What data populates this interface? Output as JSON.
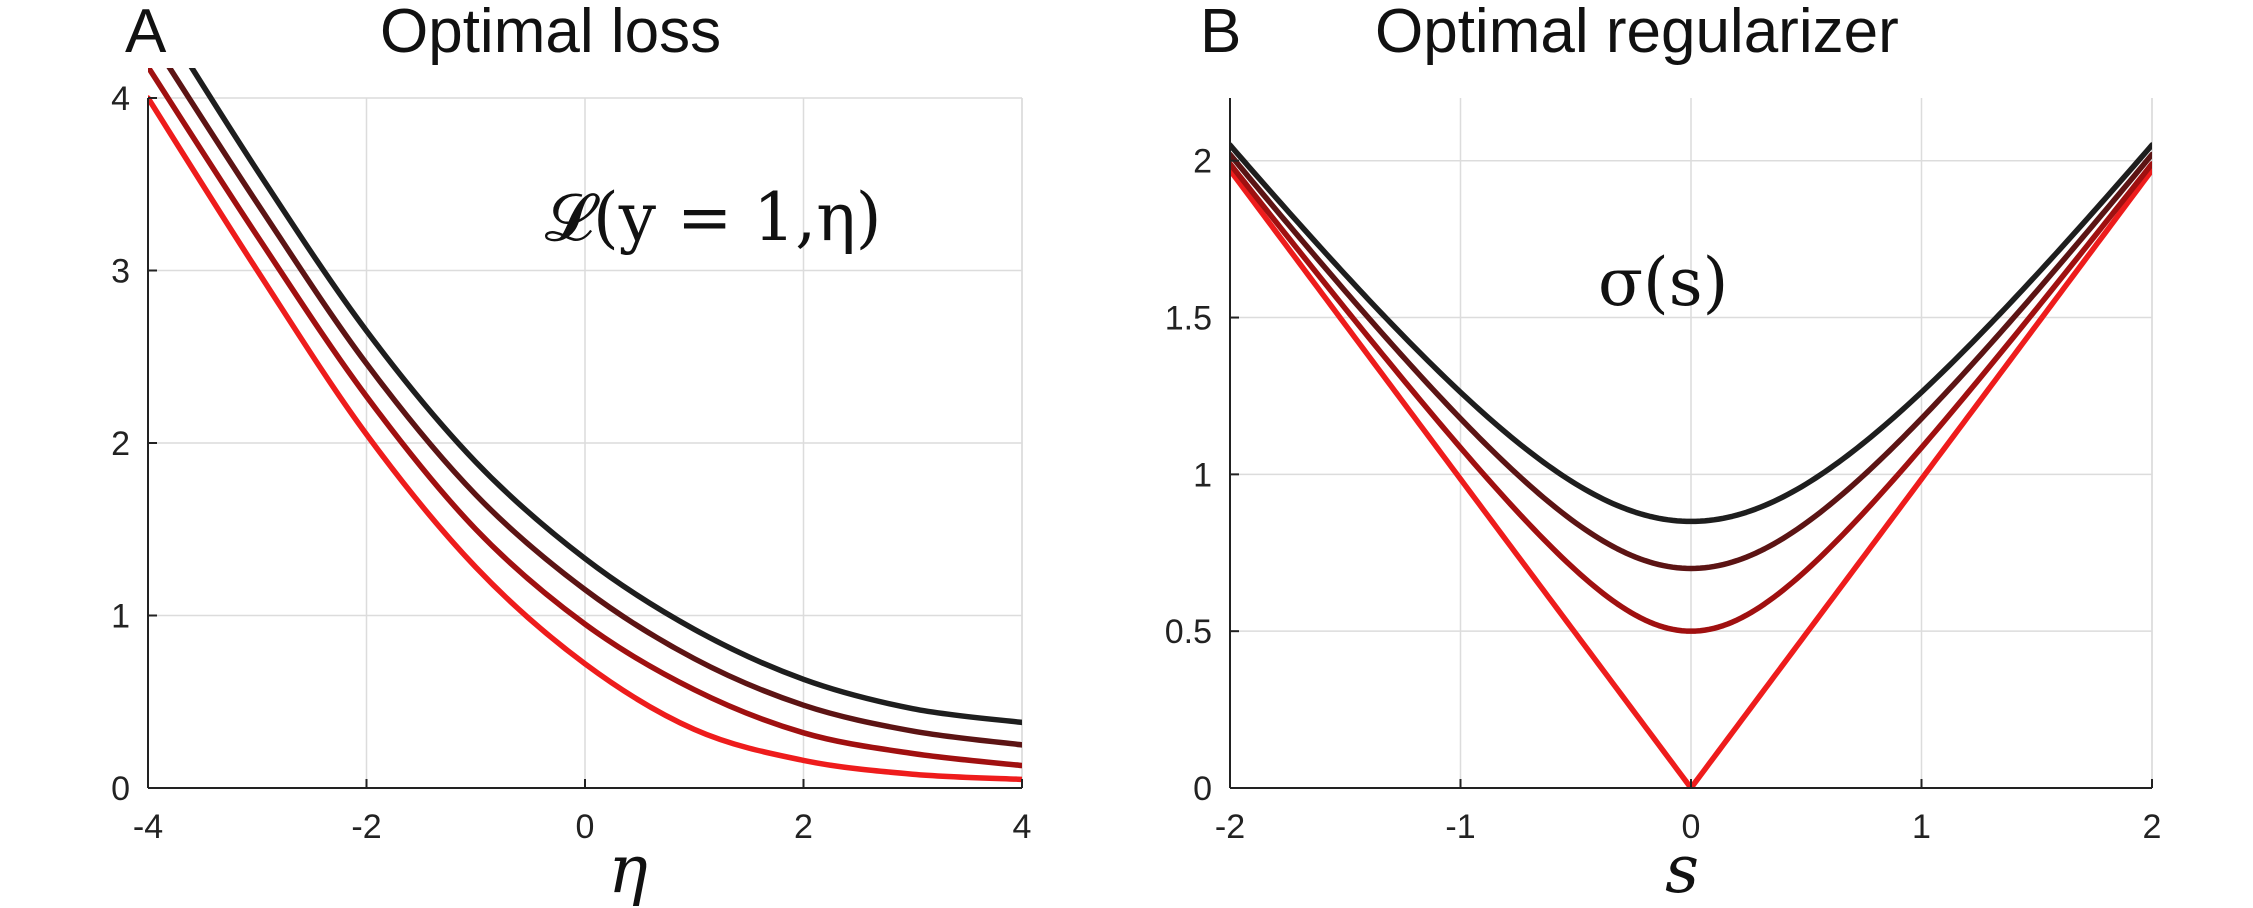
{
  "chart_data": [
    {
      "type": "line",
      "panel_letter": "A",
      "title": "Optimal loss",
      "xlabel": "η",
      "ylabel": "",
      "annotation": "𝓛(y = 1,η)",
      "xlim": [
        -4,
        4
      ],
      "ylim": [
        0,
        4
      ],
      "xticks": [
        "-4",
        "-2",
        "0",
        "2",
        "4"
      ],
      "yticks": [
        "0",
        "1",
        "2",
        "3",
        "4"
      ],
      "grid": true,
      "series": [
        {
          "color": "#ee1c1c",
          "x": [
            -4,
            -3,
            -2,
            -1,
            0,
            1,
            2,
            3,
            4
          ],
          "y": [
            4.0,
            3.0,
            2.05,
            1.28,
            0.72,
            0.34,
            0.16,
            0.08,
            0.05
          ]
        },
        {
          "color": "#a01010",
          "x": [
            -4,
            -3,
            -2,
            -1,
            0,
            1,
            2,
            3,
            4
          ],
          "y": [
            4.18,
            3.2,
            2.27,
            1.5,
            0.95,
            0.57,
            0.32,
            0.2,
            0.13
          ]
        },
        {
          "color": "#5c1414",
          "x": [
            -4,
            -3,
            -2,
            -1,
            0,
            1,
            2,
            3,
            4
          ],
          "y": [
            4.37,
            3.39,
            2.46,
            1.7,
            1.15,
            0.75,
            0.48,
            0.33,
            0.25
          ]
        },
        {
          "color": "#1e1e1e",
          "x": [
            -4,
            -3,
            -2,
            -1,
            0,
            1,
            2,
            3,
            4
          ],
          "y": [
            4.58,
            3.58,
            2.65,
            1.89,
            1.33,
            0.92,
            0.63,
            0.46,
            0.38
          ]
        }
      ]
    },
    {
      "type": "line",
      "panel_letter": "B",
      "title": "Optimal regularizer",
      "xlabel": "s",
      "ylabel": "",
      "annotation": "σ(s)",
      "xlim": [
        -2,
        2
      ],
      "ylim": [
        0,
        2.2
      ],
      "xticks": [
        "-2",
        "-1",
        "0",
        "1",
        "2"
      ],
      "yticks": [
        "0",
        "0.5",
        "1",
        "1.5",
        "2"
      ],
      "grid": true,
      "series": [
        {
          "color": "#ee1c1c",
          "min_value": 0.0,
          "x": [
            -2,
            -1,
            0,
            1,
            2
          ],
          "y": [
            1.97,
            0.98,
            0.0,
            0.98,
            1.97
          ]
        },
        {
          "color": "#a01010",
          "min_value": 0.5,
          "x": [
            -2,
            -1,
            0,
            1,
            2
          ],
          "y": [
            1.99,
            1.09,
            0.5,
            1.09,
            1.99
          ]
        },
        {
          "color": "#5c1414",
          "min_value": 0.7,
          "x": [
            -2,
            -1,
            0,
            1,
            2
          ],
          "y": [
            2.02,
            1.2,
            0.7,
            1.2,
            2.02
          ]
        },
        {
          "color": "#1e1e1e",
          "min_value": 0.85,
          "x": [
            -2,
            -1,
            0,
            1,
            2
          ],
          "y": [
            2.05,
            1.3,
            0.85,
            1.3,
            2.05
          ]
        }
      ]
    }
  ]
}
